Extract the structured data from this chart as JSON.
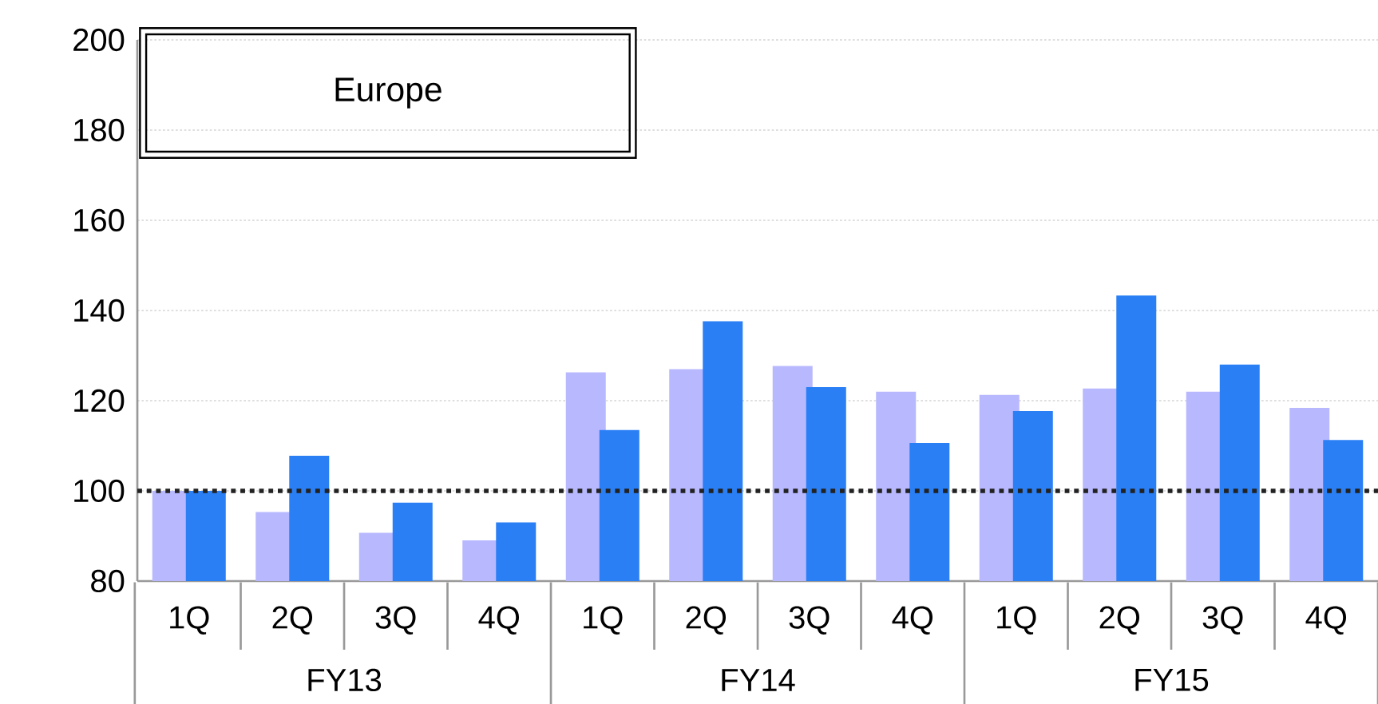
{
  "chart_data": {
    "type": "bar",
    "title": "Europe",
    "categories": [
      "1Q",
      "2Q",
      "3Q",
      "4Q",
      "1Q",
      "2Q",
      "3Q",
      "4Q",
      "1Q",
      "2Q",
      "3Q",
      "4Q"
    ],
    "series": [
      {
        "color": "#b8b8ff",
        "values": [
          100,
          95.3,
          90.7,
          89,
          126.3,
          127,
          127.7,
          122,
          121.3,
          122.7,
          122,
          118.4
        ]
      },
      {
        "color": "#2a7ff5",
        "values": [
          100,
          107.8,
          97.4,
          93,
          113.5,
          137.6,
          123,
          110.6,
          117.7,
          143.3,
          128,
          111.3
        ]
      }
    ],
    "ylim": [
      80,
      200
    ],
    "yticks": [
      80,
      100,
      120,
      140,
      160,
      180,
      200
    ],
    "grid": "y",
    "ref_lines": [
      {
        "axis": "y",
        "value": 100,
        "color": "#222222",
        "line_style": "dotted"
      }
    ],
    "annotations": [
      "FY13",
      "FY14",
      "FY15"
    ]
  }
}
